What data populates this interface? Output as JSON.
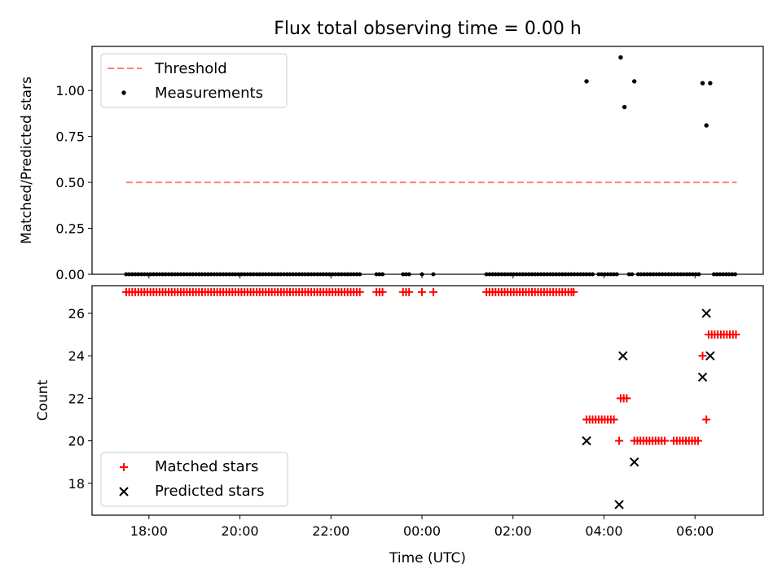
{
  "title": "Flux total observing time = 0.00 h",
  "chart_data": [
    {
      "type": "scatter",
      "ylabel": "Matched/Predicted stars",
      "ylim": [
        0,
        1.24
      ],
      "yticks": [
        "0.00",
        "0.25",
        "0.50",
        "0.75",
        "1.00"
      ],
      "legend_position": "upper-left",
      "threshold": {
        "name": "Threshold",
        "value": 0.5,
        "x_start": "17:30",
        "x_end": "06:55",
        "color": "#ff7f7f"
      },
      "measurements": {
        "name": "Measurements",
        "color": "#000000",
        "zero_segments": [
          [
            "17:30",
            "22:40"
          ],
          [
            "23:00",
            "23:08"
          ],
          [
            "23:35",
            "23:43"
          ],
          [
            "01:25",
            "03:45"
          ],
          [
            "03:53",
            "04:20"
          ],
          [
            "04:33",
            "04:40"
          ],
          [
            "04:45",
            "06:05"
          ],
          [
            "06:25",
            "06:55"
          ]
        ],
        "zero_points": [
          "00:00",
          "00:15"
        ],
        "points": [
          {
            "x": "03:37",
            "y": 1.05
          },
          {
            "x": "04:22",
            "y": 1.18
          },
          {
            "x": "04:27",
            "y": 0.91
          },
          {
            "x": "04:40",
            "y": 1.05
          },
          {
            "x": "06:10",
            "y": 1.04
          },
          {
            "x": "06:15",
            "y": 0.81
          },
          {
            "x": "06:20",
            "y": 1.04
          }
        ]
      }
    },
    {
      "type": "scatter",
      "xlabel": "Time (UTC)",
      "ylabel": "Count",
      "ylim": [
        16.5,
        27.3
      ],
      "yticks": [
        "18",
        "20",
        "22",
        "24",
        "26"
      ],
      "xticks": [
        "18:00",
        "20:00",
        "22:00",
        "00:00",
        "02:00",
        "04:00",
        "06:00"
      ],
      "x_range": [
        "16:45",
        "07:30"
      ],
      "legend_position": "lower-left",
      "matched_stars": {
        "name": "Matched stars",
        "color": "#ff0000",
        "segments": [
          {
            "from": "17:30",
            "to": "22:40",
            "y": 27
          },
          {
            "from": "23:00",
            "to": "23:08",
            "y": 27
          },
          {
            "from": "23:35",
            "to": "23:43",
            "y": 27
          },
          {
            "from": "01:25",
            "to": "03:20",
            "y": 27
          },
          {
            "from": "03:37",
            "to": "04:15",
            "y": 21
          },
          {
            "from": "04:22",
            "to": "04:32",
            "y": 22
          },
          {
            "from": "04:40",
            "to": "05:22",
            "y": 20
          },
          {
            "from": "05:32",
            "to": "06:05",
            "y": 20
          },
          {
            "from": "06:18",
            "to": "06:55",
            "y": 25
          }
        ],
        "points": [
          {
            "x": "00:00",
            "y": 27
          },
          {
            "x": "00:15",
            "y": 27
          },
          {
            "x": "03:20",
            "y": 27
          },
          {
            "x": "04:20",
            "y": 20
          },
          {
            "x": "06:10",
            "y": 24
          },
          {
            "x": "06:15",
            "y": 21
          }
        ]
      },
      "predicted_stars": {
        "name": "Predicted stars",
        "color": "#000000",
        "points": [
          {
            "x": "03:37",
            "y": 20
          },
          {
            "x": "04:20",
            "y": 17
          },
          {
            "x": "04:25",
            "y": 24
          },
          {
            "x": "04:40",
            "y": 19
          },
          {
            "x": "06:10",
            "y": 23
          },
          {
            "x": "06:15",
            "y": 26
          },
          {
            "x": "06:20",
            "y": 24
          }
        ]
      }
    }
  ]
}
